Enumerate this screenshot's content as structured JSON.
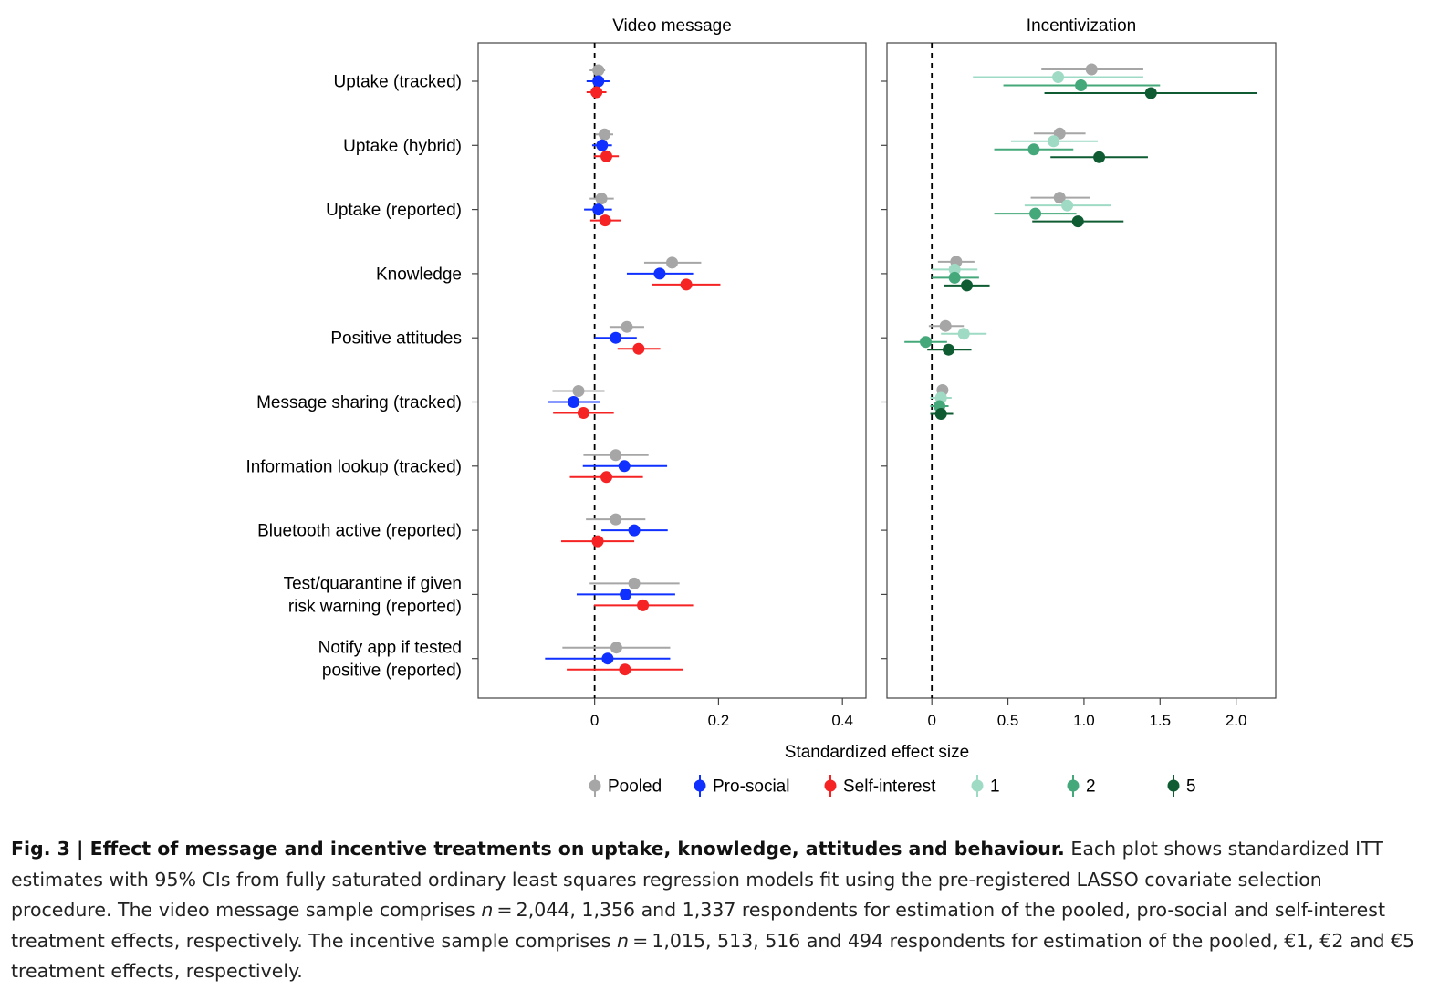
{
  "chart_data": {
    "type": "scatter",
    "style": "forest-plot with 95% CI bars",
    "xlabel": "Standardized effect size",
    "outcomes": [
      {
        "lines": [
          "Uptake (tracked)"
        ]
      },
      {
        "lines": [
          "Uptake (hybrid)"
        ]
      },
      {
        "lines": [
          "Uptake (reported)"
        ]
      },
      {
        "lines": [
          "Knowledge"
        ]
      },
      {
        "lines": [
          "Positive attitudes"
        ]
      },
      {
        "lines": [
          "Message sharing (tracked)"
        ]
      },
      {
        "lines": [
          "Information lookup (tracked)"
        ]
      },
      {
        "lines": [
          "Bluetooth active (reported)"
        ]
      },
      {
        "lines": [
          "Test/quarantine if given",
          "risk warning (reported)"
        ]
      },
      {
        "lines": [
          "Notify app if tested",
          "positive (reported)"
        ]
      }
    ],
    "panels": [
      {
        "title": "Video message",
        "xlim": [
          -0.188,
          0.438
        ],
        "ticks": [
          {
            "v": 0,
            "label": "0"
          },
          {
            "v": 0.2,
            "label": "0.2"
          },
          {
            "v": 0.4,
            "label": "0.4"
          }
        ],
        "series": [
          {
            "name": "Pooled",
            "color": "#a6a6a6",
            "points": [
              {
                "est": 0.006,
                "lo": -0.008,
                "hi": 0.017
              },
              {
                "est": 0.016,
                "lo": 0.001,
                "hi": 0.03
              },
              {
                "est": 0.011,
                "lo": -0.008,
                "hi": 0.031
              },
              {
                "est": 0.125,
                "lo": 0.08,
                "hi": 0.172
              },
              {
                "est": 0.052,
                "lo": 0.024,
                "hi": 0.08
              },
              {
                "est": -0.026,
                "lo": -0.068,
                "hi": 0.016
              },
              {
                "est": 0.034,
                "lo": -0.018,
                "hi": 0.087
              },
              {
                "est": 0.034,
                "lo": -0.014,
                "hi": 0.082
              },
              {
                "est": 0.064,
                "lo": -0.008,
                "hi": 0.137
              },
              {
                "est": 0.035,
                "lo": -0.052,
                "hi": 0.122
              }
            ]
          },
          {
            "name": "Pro-social",
            "color": "#0f30ff",
            "points": [
              {
                "est": 0.006,
                "lo": -0.013,
                "hi": 0.024
              },
              {
                "est": 0.012,
                "lo": -0.004,
                "hi": 0.028
              },
              {
                "est": 0.006,
                "lo": -0.017,
                "hi": 0.028
              },
              {
                "est": 0.105,
                "lo": 0.052,
                "hi": 0.159
              },
              {
                "est": 0.034,
                "lo": 0.0,
                "hi": 0.068
              },
              {
                "est": -0.034,
                "lo": -0.075,
                "hi": 0.008
              },
              {
                "est": 0.048,
                "lo": -0.019,
                "hi": 0.117
              },
              {
                "est": 0.064,
                "lo": 0.011,
                "hi": 0.118
              },
              {
                "est": 0.05,
                "lo": -0.029,
                "hi": 0.13
              },
              {
                "est": 0.021,
                "lo": -0.08,
                "hi": 0.122
              }
            ]
          },
          {
            "name": "Self-interest",
            "color": "#f52323",
            "points": [
              {
                "est": 0.003,
                "lo": -0.013,
                "hi": 0.019
              },
              {
                "est": 0.019,
                "lo": -0.001,
                "hi": 0.039
              },
              {
                "est": 0.017,
                "lo": -0.007,
                "hi": 0.042
              },
              {
                "est": 0.148,
                "lo": 0.093,
                "hi": 0.203
              },
              {
                "est": 0.071,
                "lo": 0.037,
                "hi": 0.106
              },
              {
                "est": -0.018,
                "lo": -0.067,
                "hi": 0.031
              },
              {
                "est": 0.019,
                "lo": -0.04,
                "hi": 0.078
              },
              {
                "est": 0.005,
                "lo": -0.054,
                "hi": 0.064
              },
              {
                "est": 0.078,
                "lo": -0.001,
                "hi": 0.159
              },
              {
                "est": 0.049,
                "lo": -0.045,
                "hi": 0.143
              }
            ]
          }
        ]
      },
      {
        "title": "Incentivization",
        "xlim": [
          -0.295,
          2.26
        ],
        "ticks": [
          {
            "v": 0,
            "label": "0"
          },
          {
            "v": 0.5,
            "label": "0.5"
          },
          {
            "v": 1,
            "label": "1.0"
          },
          {
            "v": 1.5,
            "label": "1.5"
          },
          {
            "v": 2,
            "label": "2.0"
          }
        ],
        "series": [
          {
            "name": "Pooled",
            "color": "#a6a6a6",
            "points": [
              {
                "est": 1.05,
                "lo": 0.72,
                "hi": 1.39
              },
              {
                "est": 0.84,
                "lo": 0.67,
                "hi": 1.01
              },
              {
                "est": 0.84,
                "lo": 0.65,
                "hi": 1.04
              },
              {
                "est": 0.16,
                "lo": 0.04,
                "hi": 0.28
              },
              {
                "est": 0.09,
                "lo": -0.02,
                "hi": 0.21
              },
              {
                "est": 0.07,
                "lo": 0.04,
                "hi": 0.1
              },
              null,
              null,
              null,
              null
            ]
          },
          {
            "name": "1",
            "color": "#9fdbc4",
            "points": [
              {
                "est": 0.83,
                "lo": 0.27,
                "hi": 1.39
              },
              {
                "est": 0.8,
                "lo": 0.52,
                "hi": 1.09
              },
              {
                "est": 0.89,
                "lo": 0.61,
                "hi": 1.18
              },
              {
                "est": 0.15,
                "lo": 0.0,
                "hi": 0.3
              },
              {
                "est": 0.21,
                "lo": 0.06,
                "hi": 0.36
              },
              {
                "est": 0.06,
                "lo": -0.01,
                "hi": 0.13
              },
              null,
              null,
              null,
              null
            ]
          },
          {
            "name": "2",
            "color": "#45a87a",
            "points": [
              {
                "est": 0.98,
                "lo": 0.47,
                "hi": 1.5
              },
              {
                "est": 0.67,
                "lo": 0.41,
                "hi": 0.93
              },
              {
                "est": 0.68,
                "lo": 0.41,
                "hi": 0.95
              },
              {
                "est": 0.15,
                "lo": 0.0,
                "hi": 0.31
              },
              {
                "est": -0.04,
                "lo": -0.18,
                "hi": 0.1
              },
              {
                "est": 0.05,
                "lo": -0.01,
                "hi": 0.11
              },
              null,
              null,
              null,
              null
            ]
          },
          {
            "name": "5",
            "color": "#0f5c33",
            "points": [
              {
                "est": 1.44,
                "lo": 0.74,
                "hi": 2.14
              },
              {
                "est": 1.1,
                "lo": 0.78,
                "hi": 1.42
              },
              {
                "est": 0.96,
                "lo": 0.66,
                "hi": 1.26
              },
              {
                "est": 0.23,
                "lo": 0.08,
                "hi": 0.38
              },
              {
                "est": 0.11,
                "lo": -0.03,
                "hi": 0.26
              },
              {
                "est": 0.06,
                "lo": -0.01,
                "hi": 0.14
              },
              null,
              null,
              null,
              null
            ]
          }
        ]
      }
    ],
    "legend": [
      {
        "name": "Pooled",
        "color": "#a6a6a6"
      },
      {
        "name": "Pro-social",
        "color": "#0f30ff"
      },
      {
        "name": "Self-interest",
        "color": "#f52323"
      },
      {
        "name": "1",
        "color": "#9fdbc4"
      },
      {
        "name": "2",
        "color": "#45a87a"
      },
      {
        "name": "5",
        "color": "#0f5c33"
      }
    ]
  },
  "caption": {
    "label": "Fig. 3 | Effect of message and incentive treatments on uptake, knowledge, attitudes and behaviour.",
    "p1": " Each plot shows standardized ITT estimates with 95% CIs from fully saturated ordinary least squares regression models fit using the pre-registered LASSO covariate selection procedure. The video message sample comprises ",
    "n": "n",
    "p2": " = 2,044, 1,356 and 1,337 respondents for estimation of the pooled, pro-social and self-interest treatment effects, respectively. The incentive sample comprises ",
    "p3": " = 1,015, 513, 516 and 494 respondents for estimation of the pooled, €1, €2 and €5 treatment effects, respectively."
  }
}
